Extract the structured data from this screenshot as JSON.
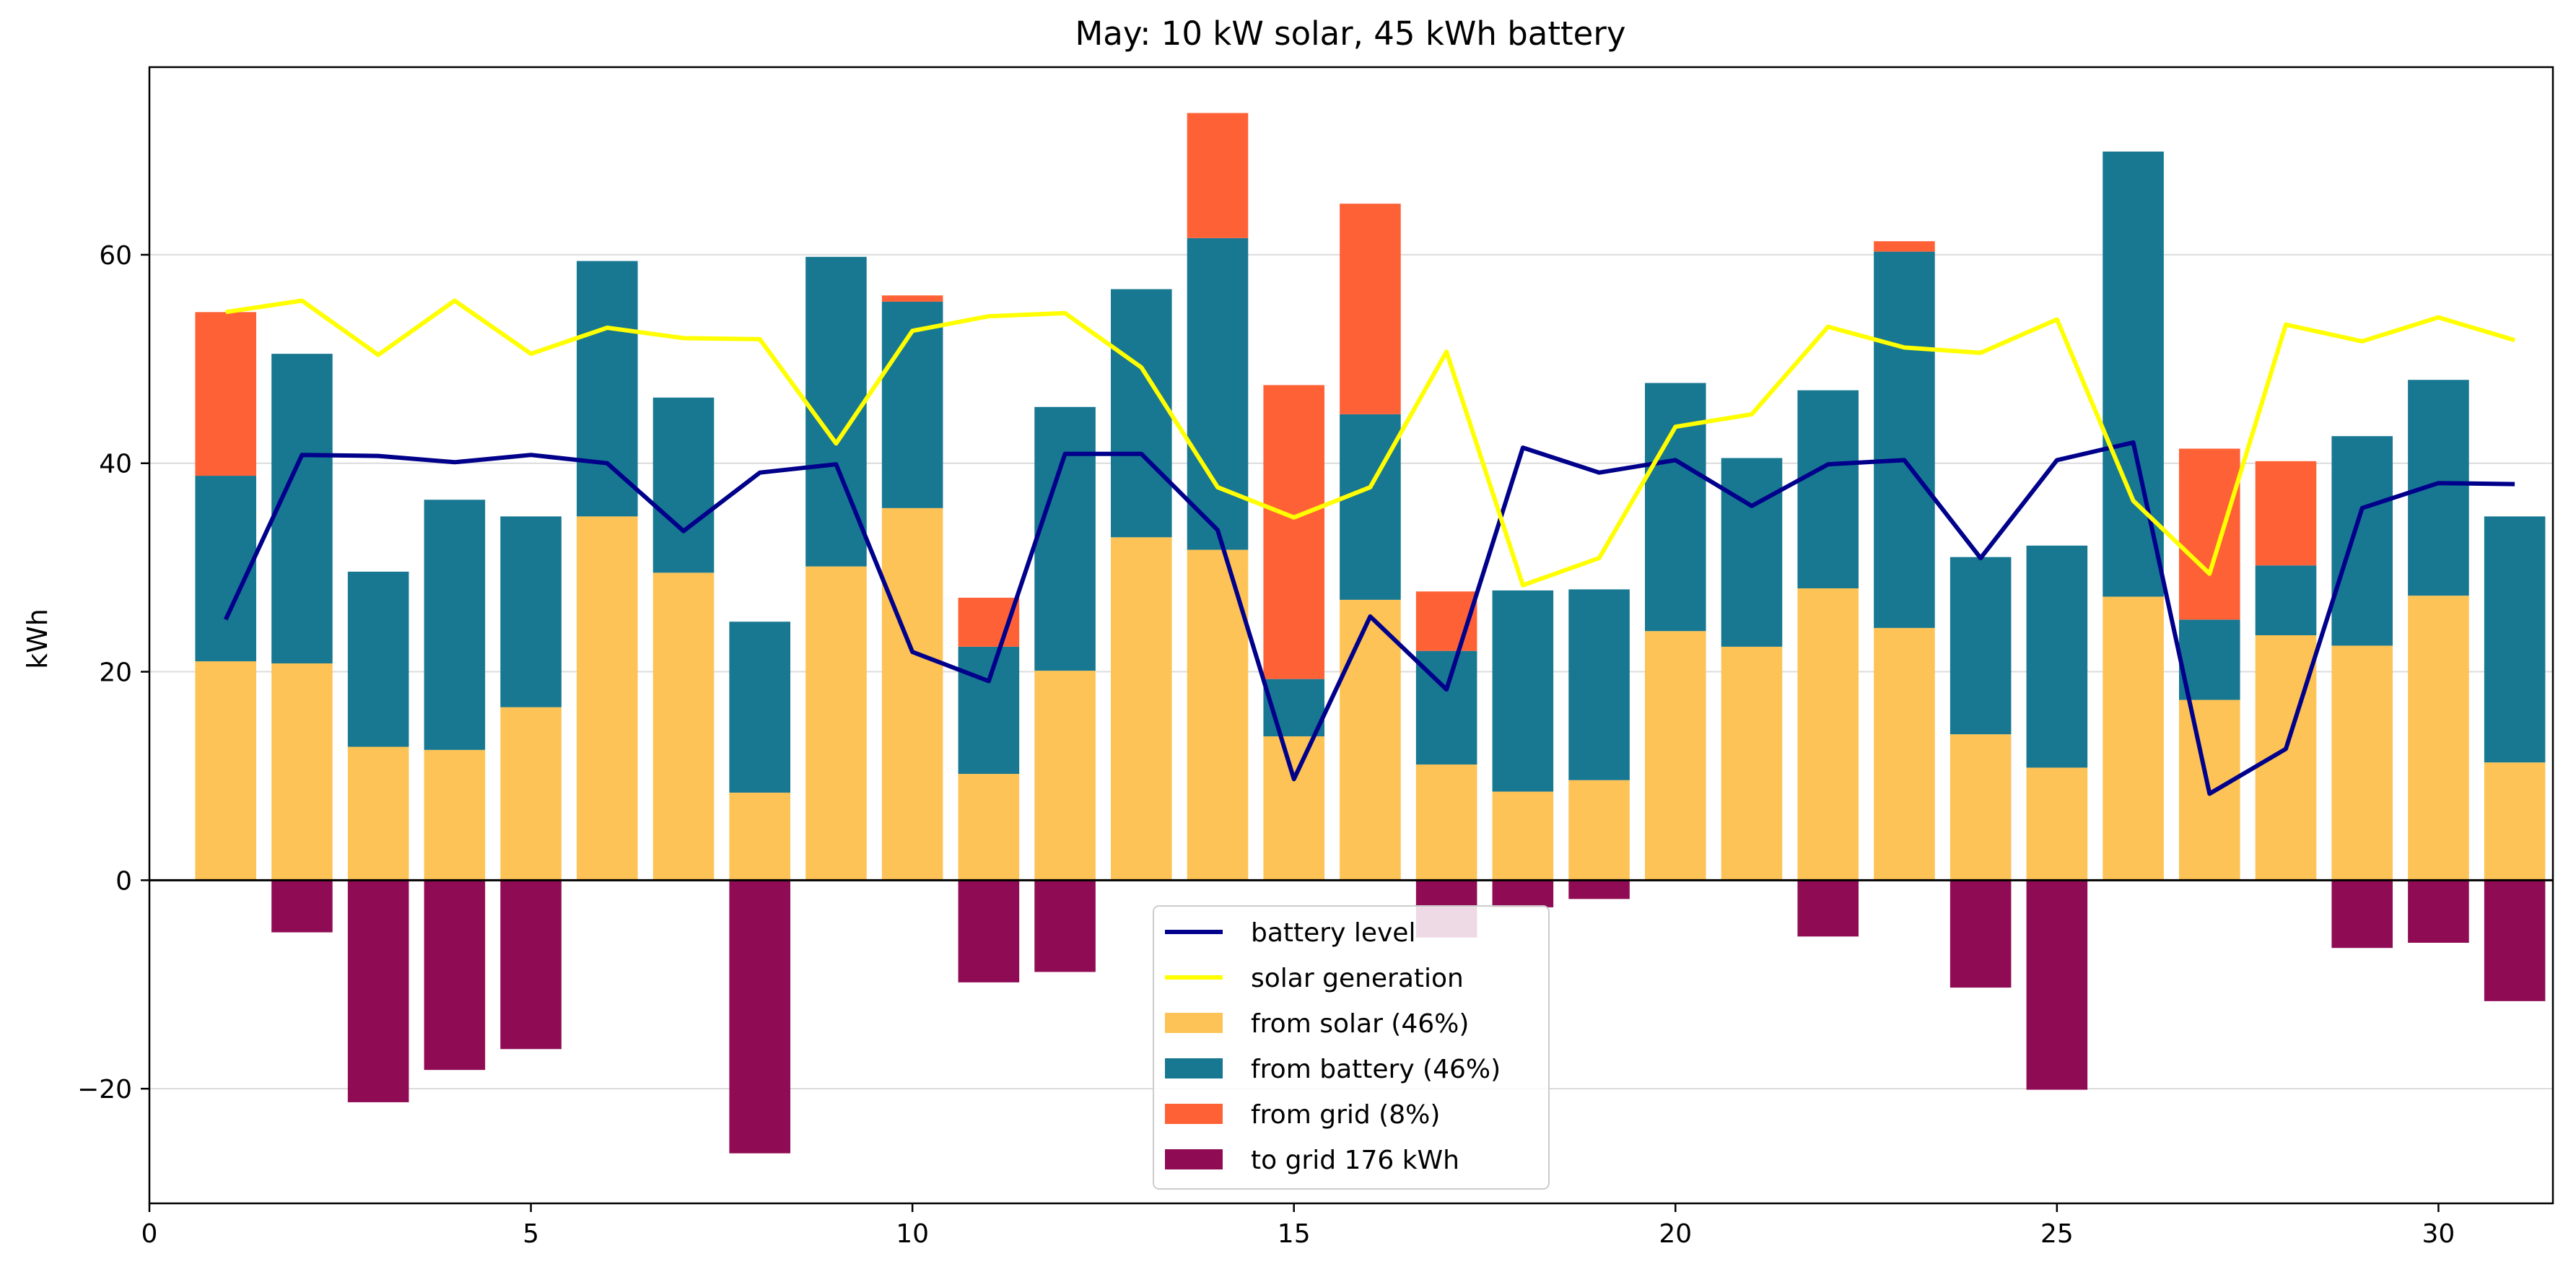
{
  "chart_data": {
    "type": "bar",
    "title": "May: 10 kW solar, 45 kWh battery",
    "xlabel": "",
    "ylabel": "kWh",
    "xlim": [
      0,
      31.5
    ],
    "ylim": [
      -31,
      78
    ],
    "x_ticks": [
      0,
      5,
      10,
      15,
      20,
      25,
      30
    ],
    "y_ticks": [
      -20,
      0,
      20,
      40,
      60
    ],
    "y_grid": true,
    "legend_position": "bottom-center",
    "days": [
      1,
      2,
      3,
      4,
      5,
      6,
      7,
      8,
      9,
      10,
      11,
      12,
      13,
      14,
      15,
      16,
      17,
      18,
      19,
      20,
      21,
      22,
      23,
      24,
      25,
      26,
      27,
      28,
      29,
      30,
      31
    ],
    "bar_series": [
      {
        "name": "from solar (46%)",
        "color": "#fdc356",
        "values": [
          21.0,
          20.8,
          12.8,
          12.5,
          16.6,
          34.9,
          29.5,
          8.4,
          30.1,
          35.7,
          10.2,
          20.1,
          32.9,
          31.7,
          13.8,
          26.9,
          11.1,
          8.5,
          9.6,
          23.9,
          22.4,
          28.0,
          24.2,
          14.0,
          10.8,
          27.2,
          17.3,
          23.5,
          22.5,
          27.3,
          11.3
        ]
      },
      {
        "name": "from battery (46%)",
        "color": "#187791",
        "values": [
          17.8,
          29.7,
          16.8,
          24.0,
          18.3,
          24.5,
          16.8,
          16.4,
          29.7,
          19.8,
          12.2,
          25.3,
          23.8,
          29.9,
          5.5,
          17.8,
          10.9,
          19.3,
          18.3,
          23.8,
          18.1,
          19.0,
          36.1,
          17.0,
          21.3,
          42.7,
          7.7,
          6.7,
          20.1,
          20.7,
          23.6
        ]
      },
      {
        "name": "from grid (8%)",
        "color": "#ff6137",
        "values": [
          15.7,
          0,
          0,
          0,
          0,
          0,
          0,
          0,
          0,
          0.6,
          4.7,
          0,
          0,
          12.0,
          28.2,
          20.2,
          5.7,
          0,
          0,
          0,
          0,
          0,
          1.0,
          0,
          0,
          0,
          16.4,
          10.0,
          0,
          0,
          0
        ]
      },
      {
        "name": "to grid 176 kWh",
        "color": "#8f0c55",
        "values": [
          0,
          -5.0,
          -21.3,
          -18.2,
          -16.2,
          0,
          0,
          -26.2,
          0,
          0,
          -9.8,
          -8.8,
          0,
          0,
          0,
          0,
          -5.5,
          -2.6,
          -1.8,
          0,
          0,
          -5.4,
          0,
          -10.3,
          -20.1,
          0,
          0,
          0,
          -6.5,
          -6.0,
          -11.6
        ]
      }
    ],
    "line_series": [
      {
        "name": "battery level",
        "color": "#00008b",
        "values": [
          25.0,
          40.8,
          40.7,
          40.1,
          40.8,
          40.0,
          33.5,
          39.1,
          39.9,
          21.9,
          19.1,
          40.9,
          40.9,
          33.6,
          9.7,
          25.3,
          18.3,
          41.5,
          39.1,
          40.3,
          35.9,
          39.9,
          40.3,
          30.9,
          40.3,
          42.0,
          8.3,
          12.6,
          35.7,
          38.1,
          38.0
        ]
      },
      {
        "name": "solar generation",
        "color": "#ffff00",
        "values": [
          54.5,
          55.6,
          50.4,
          55.6,
          50.5,
          53.0,
          52.0,
          51.9,
          41.9,
          52.7,
          54.1,
          54.4,
          49.2,
          37.7,
          34.8,
          37.7,
          50.7,
          28.3,
          30.9,
          43.5,
          44.7,
          53.1,
          51.1,
          50.6,
          53.8,
          36.4,
          29.4,
          53.3,
          51.7,
          54.0,
          51.8
        ]
      }
    ]
  }
}
